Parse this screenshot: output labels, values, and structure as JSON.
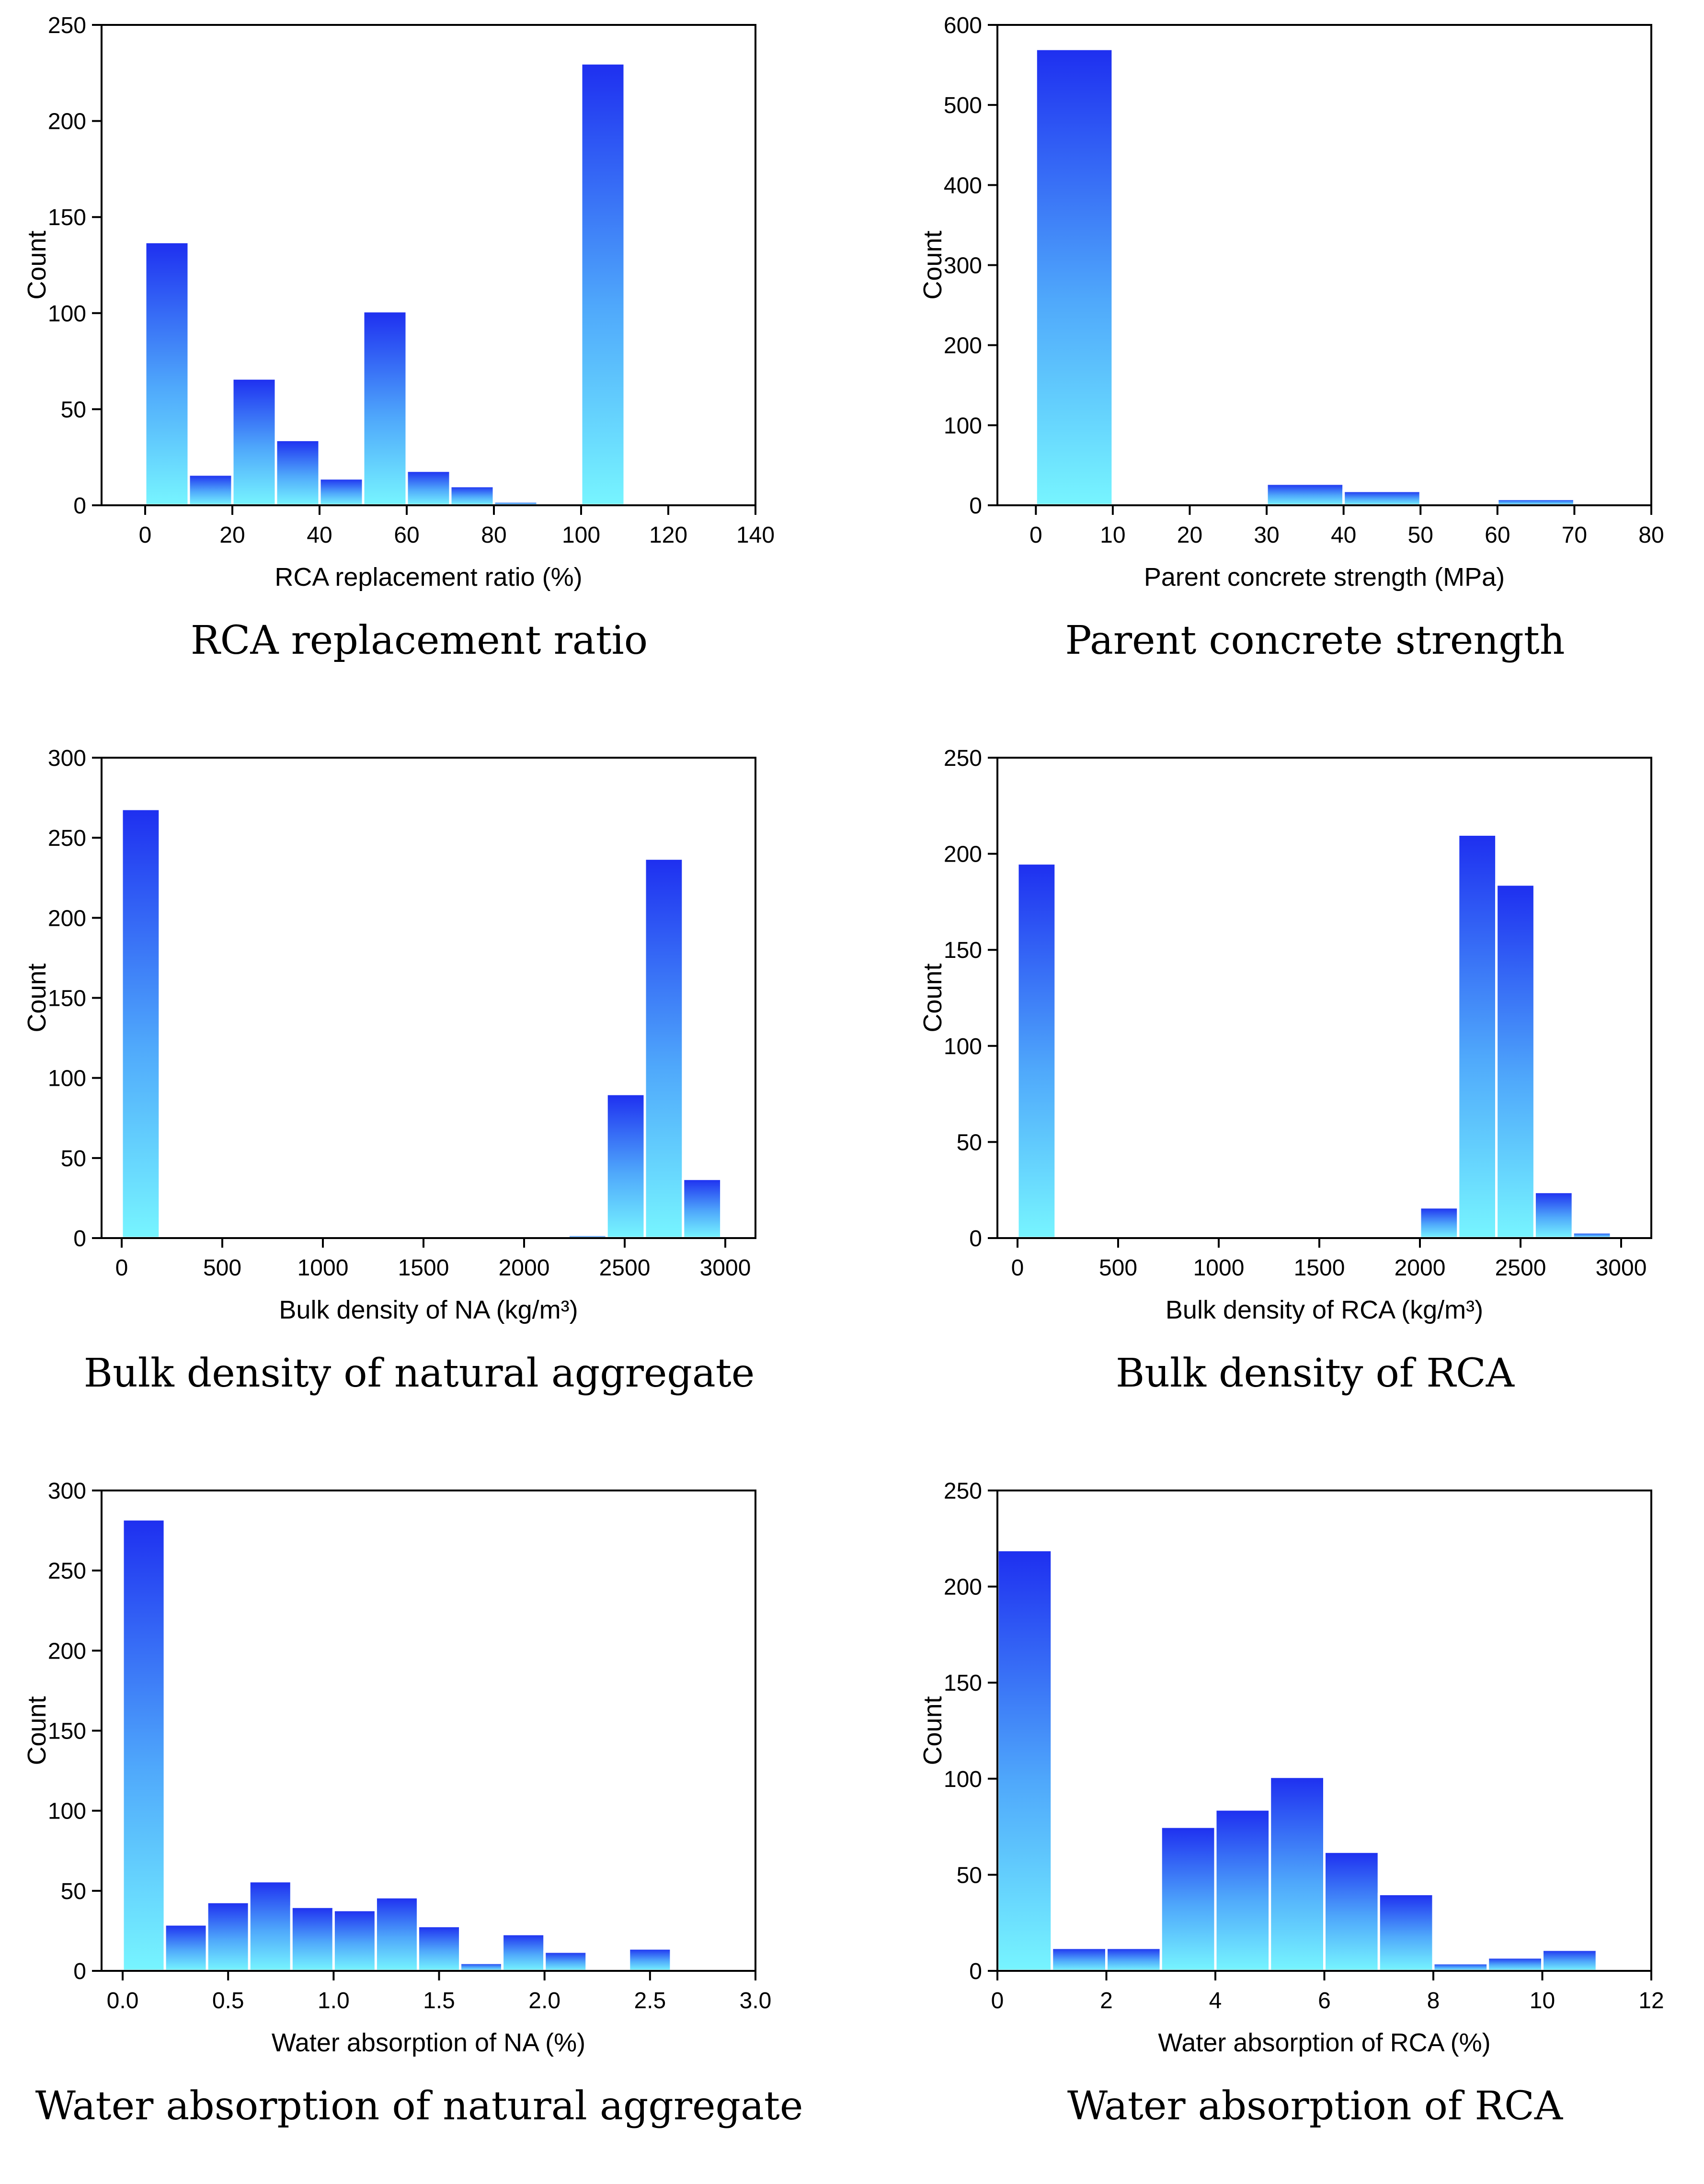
{
  "chart_data": [
    {
      "type": "bar",
      "caption": "RCA replacement ratio",
      "xlabel": "RCA replacement ratio (%)",
      "ylabel": "Count",
      "xlim": [
        -10,
        140
      ],
      "ylim": [
        0,
        250
      ],
      "xticks": [
        "0",
        "20",
        "40",
        "60",
        "80",
        "100",
        "120",
        "140"
      ],
      "xtick_values": [
        0,
        20,
        40,
        60,
        80,
        100,
        120,
        140
      ],
      "yticks": [
        "0",
        "50",
        "100",
        "150",
        "200",
        "250"
      ],
      "ytick_values": [
        0,
        50,
        100,
        150,
        200,
        250
      ],
      "bins": [
        [
          0,
          10
        ],
        [
          10,
          20
        ],
        [
          20,
          30
        ],
        [
          30,
          40
        ],
        [
          40,
          50
        ],
        [
          50,
          60
        ],
        [
          60,
          70
        ],
        [
          70,
          80
        ],
        [
          80,
          90
        ],
        [
          100,
          110
        ]
      ],
      "values": [
        137,
        16,
        66,
        34,
        14,
        101,
        18,
        10,
        2,
        230
      ]
    },
    {
      "type": "bar",
      "caption": "Parent concrete strength",
      "xlabel": "Parent concrete strength (MPa)",
      "ylabel": "Count",
      "xlim": [
        -5,
        80
      ],
      "ylim": [
        0,
        600
      ],
      "xticks": [
        "0",
        "10",
        "20",
        "30",
        "40",
        "50",
        "60",
        "70",
        "80"
      ],
      "xtick_values": [
        0,
        10,
        20,
        30,
        40,
        50,
        60,
        70,
        80
      ],
      "yticks": [
        "0",
        "100",
        "200",
        "300",
        "400",
        "500",
        "600"
      ],
      "ytick_values": [
        0,
        100,
        200,
        300,
        400,
        500,
        600
      ],
      "bins": [
        [
          0,
          10
        ],
        [
          30,
          40
        ],
        [
          40,
          50
        ],
        [
          60,
          70
        ]
      ],
      "values": [
        570,
        27,
        18,
        8
      ]
    },
    {
      "type": "bar",
      "caption": "Bulk density of natural aggregate",
      "xlabel": "Bulk density of NA (kg/m³)",
      "ylabel": "Count",
      "xlim": [
        -100,
        3150
      ],
      "ylim": [
        0,
        300
      ],
      "xticks": [
        "0",
        "500",
        "1000",
        "1500",
        "2000",
        "2500",
        "3000"
      ],
      "xtick_values": [
        0,
        500,
        1000,
        1500,
        2000,
        2500,
        3000
      ],
      "yticks": [
        "0",
        "50",
        "100",
        "150",
        "200",
        "250",
        "300"
      ],
      "ytick_values": [
        0,
        50,
        100,
        150,
        200,
        250,
        300
      ],
      "bins": [
        [
          0,
          190
        ],
        [
          2220,
          2410
        ],
        [
          2410,
          2600
        ],
        [
          2600,
          2790
        ],
        [
          2790,
          2980
        ]
      ],
      "values": [
        268,
        2,
        90,
        237,
        37
      ]
    },
    {
      "type": "bar",
      "caption": "Bulk density of RCA",
      "xlabel": "Bulk density of RCA (kg/m³)",
      "ylabel": "Count",
      "xlim": [
        -100,
        3150
      ],
      "ylim": [
        0,
        250
      ],
      "xticks": [
        "0",
        "500",
        "1000",
        "1500",
        "2000",
        "2500",
        "3000"
      ],
      "xtick_values": [
        0,
        500,
        1000,
        1500,
        2000,
        2500,
        3000
      ],
      "yticks": [
        "0",
        "50",
        "100",
        "150",
        "200",
        "250"
      ],
      "ytick_values": [
        0,
        50,
        100,
        150,
        200,
        250
      ],
      "bins": [
        [
          0,
          190
        ],
        [
          2000,
          2190
        ],
        [
          2190,
          2380
        ],
        [
          2380,
          2570
        ],
        [
          2570,
          2760
        ],
        [
          2760,
          2950
        ]
      ],
      "values": [
        195,
        16,
        210,
        184,
        24,
        3
      ]
    },
    {
      "type": "bar",
      "caption": "Water absorption of natural aggregate",
      "xlabel": "Water absorption of NA (%)",
      "ylabel": "Count",
      "xlim": [
        -0.1,
        3.0
      ],
      "ylim": [
        0,
        300
      ],
      "xticks": [
        "0.0",
        "0.5",
        "1.0",
        "1.5",
        "2.0",
        "2.5",
        "3.0"
      ],
      "xtick_values": [
        0,
        0.5,
        1.0,
        1.5,
        2.0,
        2.5,
        3.0
      ],
      "yticks": [
        "0",
        "50",
        "100",
        "150",
        "200",
        "250",
        "300"
      ],
      "ytick_values": [
        0,
        50,
        100,
        150,
        200,
        250,
        300
      ],
      "bins": [
        [
          0,
          0.2
        ],
        [
          0.2,
          0.4
        ],
        [
          0.4,
          0.6
        ],
        [
          0.6,
          0.8
        ],
        [
          0.8,
          1.0
        ],
        [
          1.0,
          1.2
        ],
        [
          1.2,
          1.4
        ],
        [
          1.4,
          1.6
        ],
        [
          1.6,
          1.8
        ],
        [
          1.8,
          2.0
        ],
        [
          2.0,
          2.2
        ],
        [
          2.4,
          2.6
        ]
      ],
      "values": [
        282,
        29,
        43,
        56,
        40,
        38,
        46,
        28,
        5,
        23,
        12,
        14
      ]
    },
    {
      "type": "bar",
      "caption": "Water absorption of RCA",
      "xlabel": "Water absorption of RCA (%)",
      "ylabel": "Count",
      "xlim": [
        0,
        12
      ],
      "ylim": [
        0,
        250
      ],
      "xticks": [
        "0",
        "2",
        "4",
        "6",
        "8",
        "10",
        "12"
      ],
      "xtick_values": [
        0,
        2,
        4,
        6,
        8,
        10,
        12
      ],
      "yticks": [
        "0",
        "50",
        "100",
        "150",
        "200",
        "250"
      ],
      "ytick_values": [
        0,
        50,
        100,
        150,
        200,
        250
      ],
      "bins": [
        [
          0,
          1
        ],
        [
          1,
          2
        ],
        [
          2,
          3
        ],
        [
          3,
          4
        ],
        [
          4,
          5
        ],
        [
          5,
          6
        ],
        [
          6,
          7
        ],
        [
          7,
          8
        ],
        [
          8,
          9
        ],
        [
          9,
          10
        ],
        [
          10,
          11
        ]
      ],
      "values": [
        219,
        12,
        12,
        75,
        84,
        101,
        62,
        40,
        4,
        7,
        11
      ]
    }
  ]
}
